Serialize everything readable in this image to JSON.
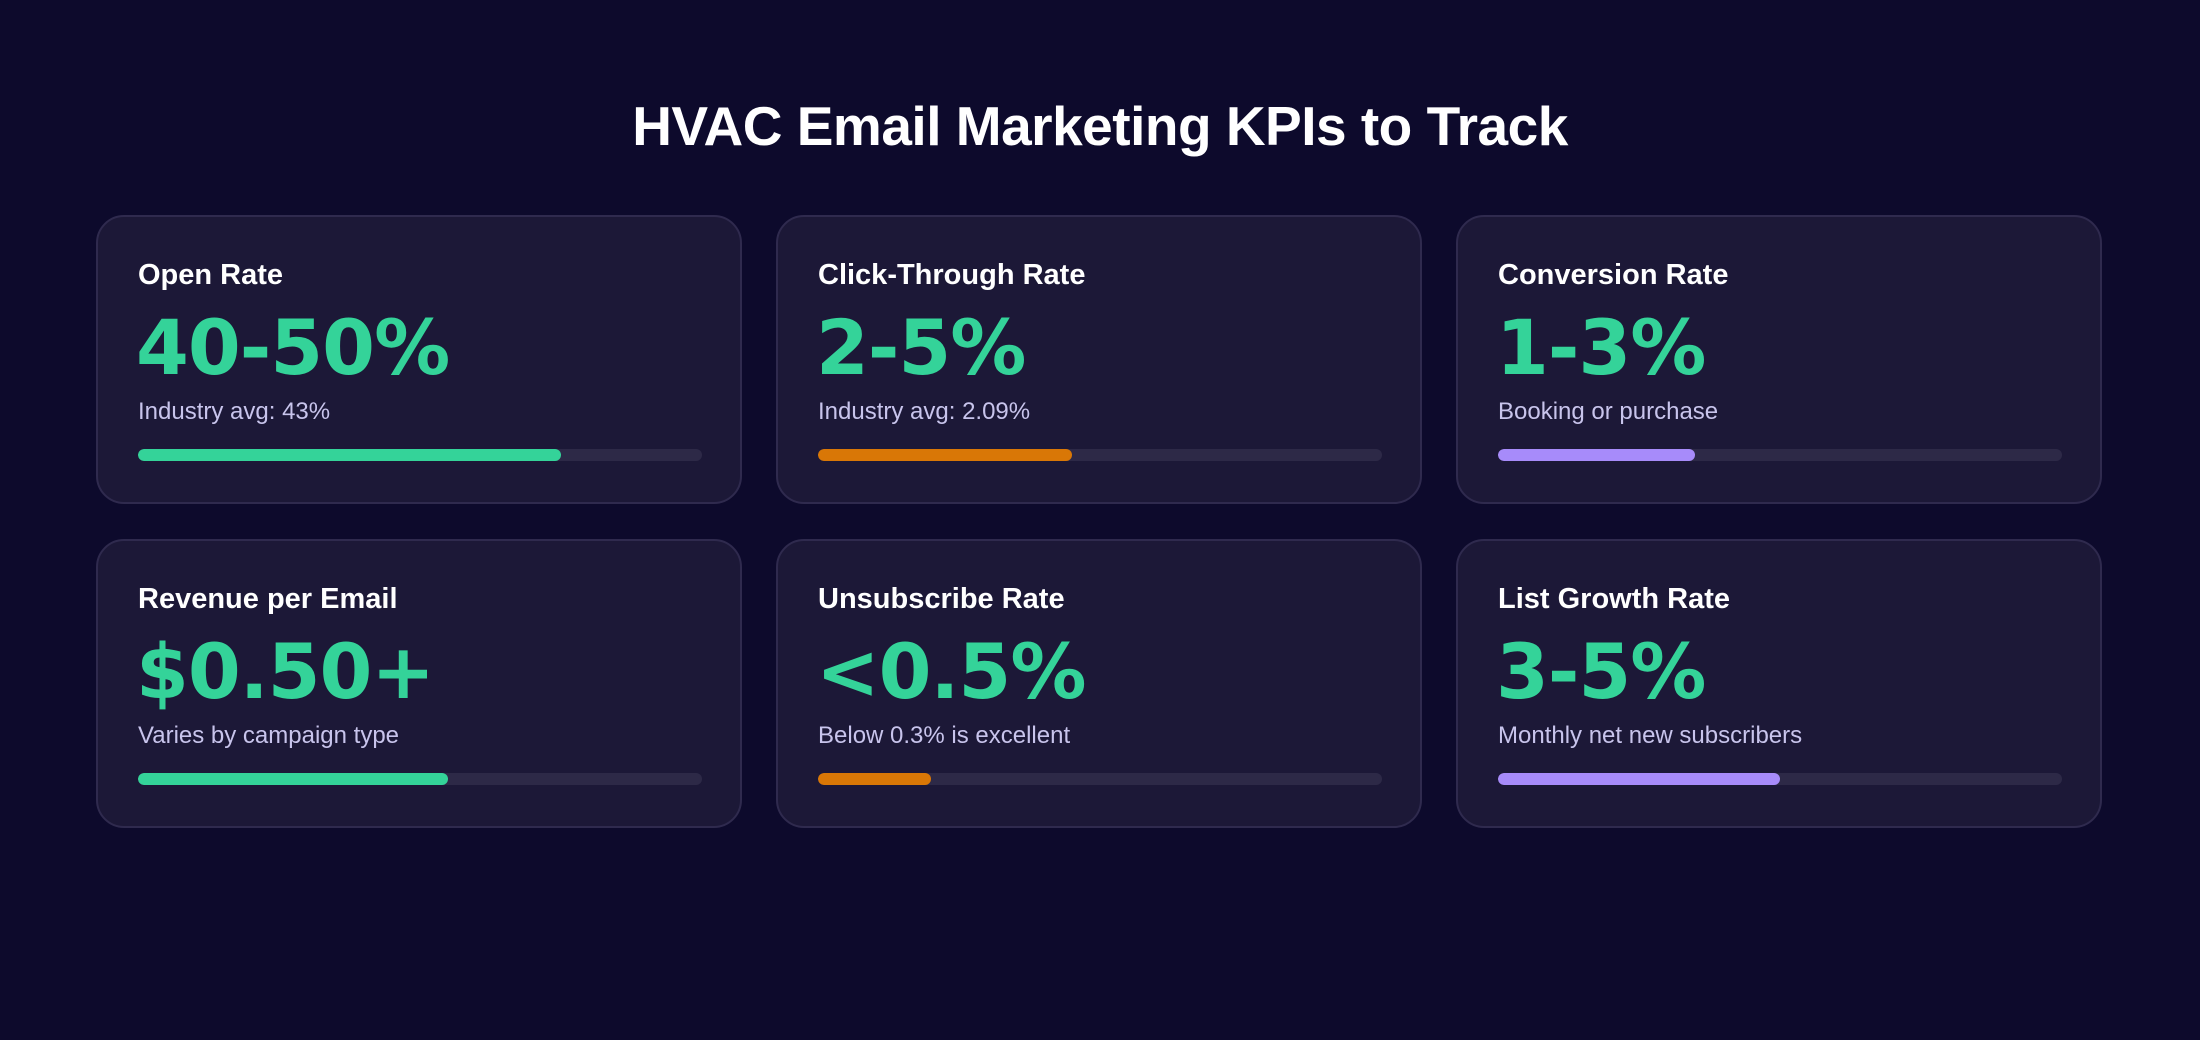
{
  "title": "HVAC Email Marketing KPIs to Track",
  "colors": {
    "background": "#0d0a2c",
    "card_background": "#1c1837",
    "value_green": "#34d399",
    "bar_green": "#34d399",
    "bar_orange": "#d97706",
    "bar_purple": "#a78bfa",
    "bar_track": "#2d2947"
  },
  "cards": [
    {
      "label": "Open Rate",
      "value": "40-50%",
      "note": "Industry avg: 43%",
      "progress": 0.75,
      "bar_color": "#34d399"
    },
    {
      "label": "Click-Through Rate",
      "value": "2-5%",
      "note": "Industry avg: 2.09%",
      "progress": 0.45,
      "bar_color": "#d97706"
    },
    {
      "label": "Conversion Rate",
      "value": "1-3%",
      "note": "Booking or purchase",
      "progress": 0.35,
      "bar_color": "#a78bfa"
    },
    {
      "label": "Revenue per Email",
      "value": "$0.50+",
      "note": "Varies by campaign type",
      "progress": 0.55,
      "bar_color": "#34d399"
    },
    {
      "label": "Unsubscribe Rate",
      "value": "<0.5%",
      "note": "Below 0.3% is excellent",
      "progress": 0.2,
      "bar_color": "#d97706"
    },
    {
      "label": "List Growth Rate",
      "value": "3-5%",
      "note": "Monthly net new subscribers",
      "progress": 0.5,
      "bar_color": "#a78bfa"
    }
  ]
}
